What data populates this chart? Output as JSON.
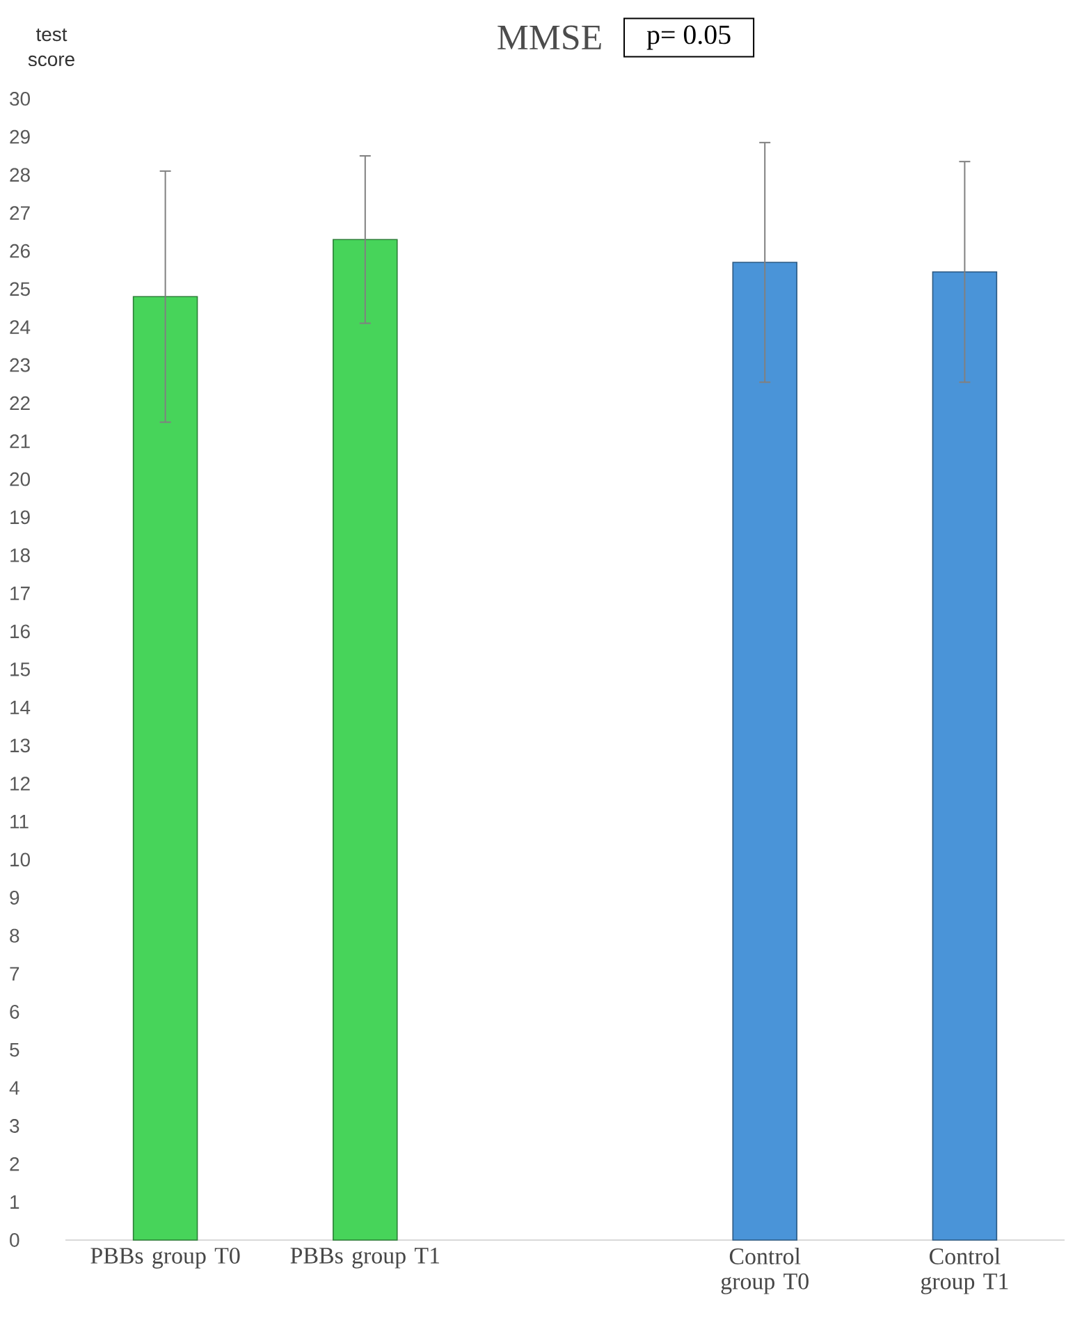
{
  "chart_data": {
    "type": "bar",
    "title": "MMSE",
    "ylabel": "test score",
    "categories": [
      "PBBs group T0",
      "PBBs group T1",
      null,
      "Control group T0",
      "Control group T1"
    ],
    "values": [
      24.8,
      26.3,
      null,
      25.7,
      25.45
    ],
    "errors": [
      3.3,
      2.2,
      null,
      3.15,
      2.9
    ],
    "colors": [
      "#47d45a",
      "#47d45a",
      null,
      "#4a94d8",
      "#4a94d8"
    ],
    "ylim": [
      0,
      30
    ],
    "yticks": [
      0,
      1,
      2,
      3,
      4,
      5,
      6,
      7,
      8,
      9,
      10,
      11,
      12,
      13,
      14,
      15,
      16,
      17,
      18,
      19,
      20,
      21,
      22,
      23,
      24,
      25,
      26,
      27,
      28,
      29,
      30
    ],
    "annotations": [
      "p= 0.05"
    ]
  }
}
